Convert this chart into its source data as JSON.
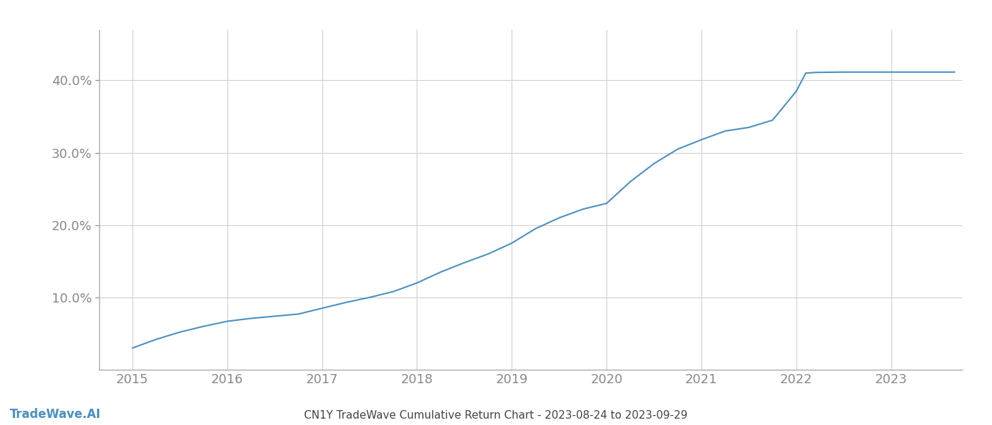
{
  "title": "CN1Y TradeWave Cumulative Return Chart - 2023-08-24 to 2023-09-29",
  "watermark": "TradeWave.AI",
  "line_color": "#4a90c4",
  "background_color": "#ffffff",
  "grid_color": "#d0d0d0",
  "x_years": [
    2015,
    2016,
    2017,
    2018,
    2019,
    2020,
    2021,
    2022,
    2023
  ],
  "x_data": [
    2015.0,
    2015.25,
    2015.5,
    2015.75,
    2016.0,
    2016.25,
    2016.5,
    2016.75,
    2017.0,
    2017.25,
    2017.5,
    2017.75,
    2018.0,
    2018.25,
    2018.5,
    2018.75,
    2019.0,
    2019.25,
    2019.5,
    2019.75,
    2020.0,
    2020.25,
    2020.5,
    2020.75,
    2021.0,
    2021.25,
    2021.5,
    2021.75,
    2022.0,
    2022.1,
    2022.2,
    2022.5,
    2022.75,
    2023.0,
    2023.25,
    2023.5,
    2023.67
  ],
  "y_data": [
    3.0,
    4.2,
    5.2,
    6.0,
    6.7,
    7.1,
    7.4,
    7.7,
    8.5,
    9.3,
    10.0,
    10.8,
    12.0,
    13.5,
    14.8,
    16.0,
    17.5,
    19.5,
    21.0,
    22.2,
    23.0,
    26.0,
    28.5,
    30.5,
    31.8,
    33.0,
    33.5,
    34.5,
    38.5,
    41.0,
    41.1,
    41.15,
    41.15,
    41.15,
    41.15,
    41.15,
    41.15
  ],
  "yticks": [
    10.0,
    20.0,
    30.0,
    40.0
  ],
  "ytick_labels": [
    "10.0%",
    "20.0%",
    "30.0%",
    "40.0%"
  ],
  "xlim": [
    2014.65,
    2023.75
  ],
  "ylim": [
    0,
    47
  ],
  "line_width": 1.5,
  "title_fontsize": 11,
  "tick_fontsize": 13,
  "watermark_fontsize": 12,
  "spine_color": "#aaaaaa",
  "tick_color": "#888888"
}
